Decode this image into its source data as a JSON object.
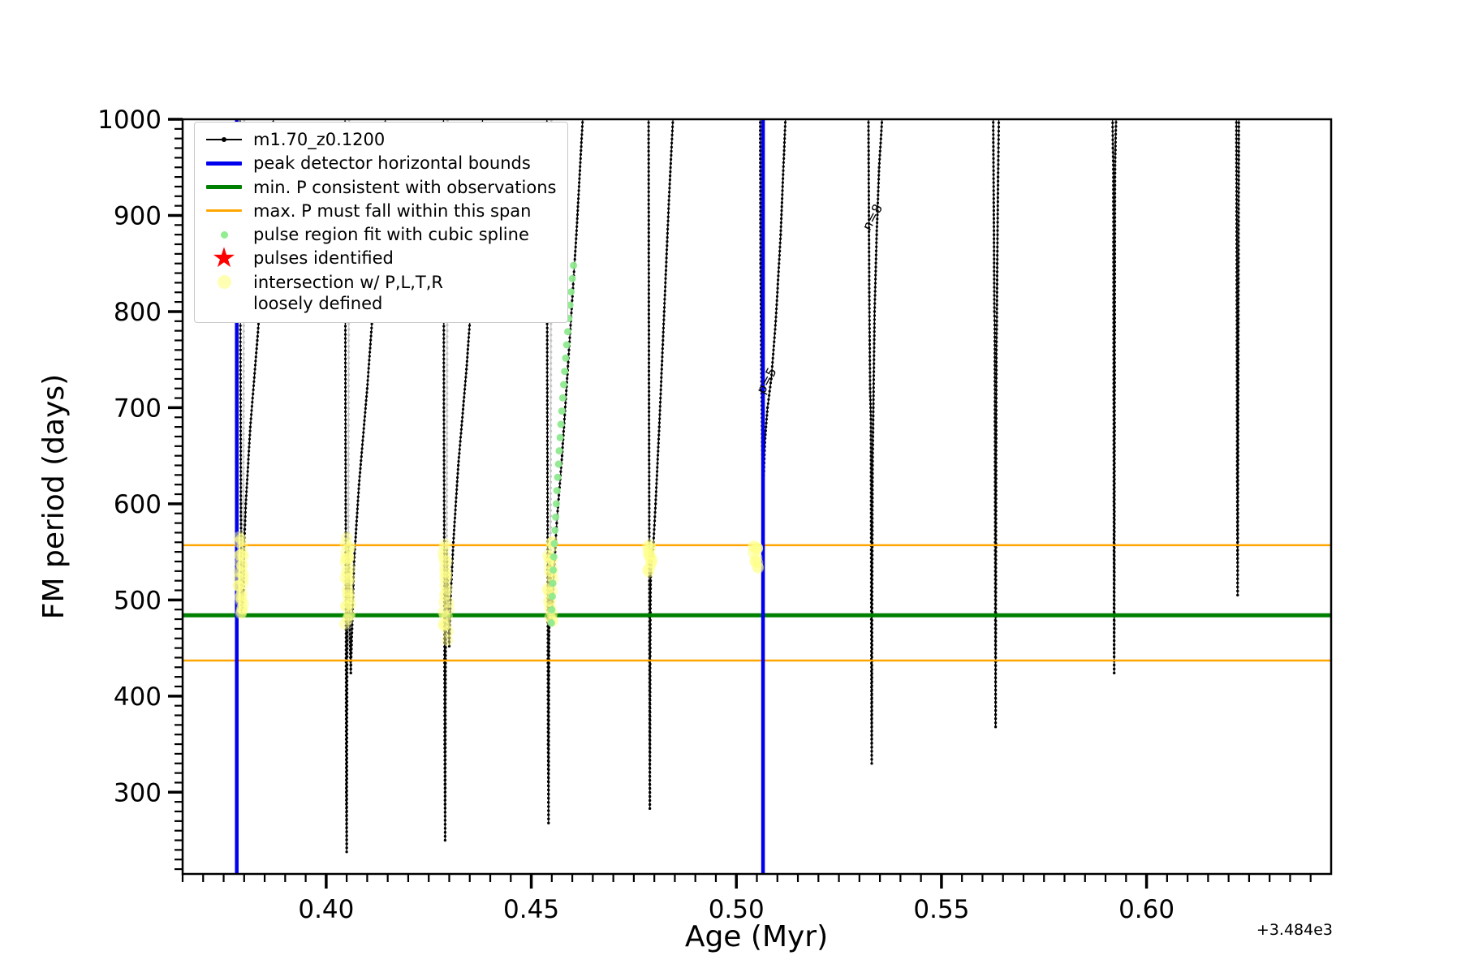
{
  "figure": {
    "xlabel": "Age (Myr)",
    "ylabel": "FM period (days)",
    "x_offset_text": "+3.484e3"
  },
  "legend": {
    "items": [
      {
        "label": "m1.70_z0.1200",
        "marker": "line-dot",
        "color": "#000000"
      },
      {
        "label": "peak detector horizontal bounds",
        "marker": "line-thick",
        "color": "#0000ee"
      },
      {
        "label": "min. P consistent with observations",
        "marker": "line-thick",
        "color": "#008000"
      },
      {
        "label": "max. P must fall within this span",
        "marker": "line-thin",
        "color": "#ffa500"
      },
      {
        "label": "pulse region fit with cubic spline",
        "marker": "dot-small",
        "color": "#90ee90"
      },
      {
        "label": "pulses identified",
        "marker": "star",
        "color": "#ff0000"
      },
      {
        "label": "intersection w/ P,L,T,R\nloosely defined",
        "marker": "dot-big",
        "color": "#ffff99"
      }
    ]
  },
  "chart_data": {
    "type": "line",
    "title": "",
    "xlabel": "Age (Myr)",
    "ylabel": "FM period (days)",
    "x_offset": "+3.484e3",
    "xlim": [
      0.365,
      0.645
    ],
    "ylim": [
      215,
      1000
    ],
    "xtick_values": [
      0.4,
      0.45,
      0.5,
      0.55,
      0.6
    ],
    "xtick_labels": [
      "0.40",
      "0.45",
      "0.50",
      "0.55",
      "0.60"
    ],
    "ytick_values": [
      300,
      400,
      500,
      600,
      700,
      800,
      900,
      1000
    ],
    "ytick_labels": [
      "300",
      "400",
      "500",
      "600",
      "700",
      "800",
      "900",
      "1000"
    ],
    "x_minor_step": 0.005,
    "y_minor_step": 10,
    "grid": false,
    "legend_position": "upper-left",
    "vlines": {
      "color": "#0000ee",
      "width": 4.5,
      "x": [
        0.3782,
        0.5065
      ]
    },
    "hlines": [
      {
        "y": 557,
        "color": "#ffa500",
        "width": 2.5
      },
      {
        "y": 484,
        "color": "#008000",
        "width": 5
      },
      {
        "y": 437,
        "color": "#ffa500",
        "width": 2.5
      }
    ],
    "annotations": [
      {
        "text": "p=5",
        "x": 0.5083,
        "y": 726,
        "rotation": -62
      },
      {
        "text": "n=8",
        "x": 0.5341,
        "y": 896,
        "rotation": -62
      }
    ],
    "series_name": "m1.70_z0.1200",
    "pulses": [
      {
        "points": [
          [
            0.379,
            1005
          ],
          [
            0.3791,
            760
          ],
          [
            0.3792,
            600
          ],
          [
            0.3793,
            520
          ],
          [
            0.3794,
            486
          ],
          [
            0.3796,
            492
          ],
          [
            0.3798,
            510
          ],
          [
            0.38,
            556
          ],
          [
            0.3804,
            600
          ],
          [
            0.3815,
            680
          ],
          [
            0.3832,
            770
          ],
          [
            0.3852,
            880
          ],
          [
            0.3872,
            1005
          ]
        ]
      },
      {
        "points": [
          [
            0.4046,
            1005
          ],
          [
            0.4047,
            700
          ],
          [
            0.4048,
            520
          ],
          [
            0.4049,
            300
          ],
          [
            0.405,
            238
          ],
          [
            0.4051,
            420
          ],
          [
            0.4052,
            500
          ],
          [
            0.4054,
            555
          ],
          [
            0.4056,
            520
          ],
          [
            0.4058,
            460
          ],
          [
            0.406,
            424
          ],
          [
            0.4063,
            470
          ],
          [
            0.4068,
            540
          ],
          [
            0.408,
            620
          ],
          [
            0.41,
            720
          ],
          [
            0.4122,
            850
          ],
          [
            0.4145,
            1005
          ]
        ]
      },
      {
        "points": [
          [
            0.4286,
            1005
          ],
          [
            0.4287,
            700
          ],
          [
            0.4288,
            540
          ],
          [
            0.4289,
            350
          ],
          [
            0.429,
            250
          ],
          [
            0.4291,
            430
          ],
          [
            0.4292,
            500
          ],
          [
            0.4294,
            552
          ],
          [
            0.4296,
            520
          ],
          [
            0.4298,
            470
          ],
          [
            0.43,
            452
          ],
          [
            0.4303,
            500
          ],
          [
            0.431,
            560
          ],
          [
            0.4322,
            640
          ],
          [
            0.4342,
            740
          ],
          [
            0.4362,
            860
          ],
          [
            0.4382,
            1005
          ]
        ]
      },
      {
        "points": [
          [
            0.4538,
            1005
          ],
          [
            0.4539,
            720
          ],
          [
            0.454,
            540
          ],
          [
            0.4541,
            350
          ],
          [
            0.4542,
            268
          ],
          [
            0.4543,
            430
          ],
          [
            0.4544,
            500
          ],
          [
            0.4546,
            548
          ],
          [
            0.4548,
            510
          ],
          [
            0.455,
            480
          ],
          [
            0.4554,
            520
          ],
          [
            0.4562,
            580
          ],
          [
            0.4575,
            650
          ],
          [
            0.4592,
            760
          ],
          [
            0.461,
            880
          ],
          [
            0.4626,
            1005
          ]
        ]
      },
      {
        "points": [
          [
            0.4786,
            1005
          ],
          [
            0.4787,
            700
          ],
          [
            0.4788,
            520
          ],
          [
            0.4789,
            283
          ],
          [
            0.479,
            450
          ],
          [
            0.4791,
            520
          ],
          [
            0.4793,
            553
          ],
          [
            0.4795,
            545
          ],
          [
            0.4798,
            560
          ],
          [
            0.4803,
            600
          ],
          [
            0.4812,
            680
          ],
          [
            0.4824,
            800
          ],
          [
            0.4836,
            920
          ],
          [
            0.4846,
            1005
          ]
        ]
      },
      {
        "points": [
          [
            0.5058,
            1005
          ],
          [
            0.5059,
            850
          ],
          [
            0.5061,
            740
          ],
          [
            0.5063,
            660
          ],
          [
            0.5065,
            616
          ],
          [
            0.5067,
            634
          ],
          [
            0.507,
            668
          ],
          [
            0.5076,
            700
          ],
          [
            0.5085,
            730
          ],
          [
            0.5096,
            790
          ],
          [
            0.5108,
            880
          ],
          [
            0.512,
            1005
          ]
        ]
      },
      {
        "points": [
          [
            0.5322,
            1005
          ],
          [
            0.5324,
            820
          ],
          [
            0.5326,
            720
          ],
          [
            0.5328,
            688
          ],
          [
            0.5329,
            480
          ],
          [
            0.533,
            330
          ],
          [
            0.5331,
            500
          ],
          [
            0.5332,
            640
          ],
          [
            0.5334,
            700
          ],
          [
            0.5337,
            800
          ],
          [
            0.5342,
            880
          ],
          [
            0.5348,
            950
          ],
          [
            0.5356,
            1005
          ]
        ]
      },
      {
        "points": [
          [
            0.5626,
            1005
          ],
          [
            0.5628,
            880
          ],
          [
            0.5629,
            800
          ],
          [
            0.563,
            786
          ],
          [
            0.5631,
            560
          ],
          [
            0.5632,
            368
          ],
          [
            0.5633,
            580
          ],
          [
            0.5634,
            760
          ],
          [
            0.5635,
            790
          ],
          [
            0.5636,
            850
          ],
          [
            0.5638,
            940
          ],
          [
            0.564,
            1005
          ]
        ]
      },
      {
        "points": [
          [
            0.5917,
            1005
          ],
          [
            0.5918,
            970
          ],
          [
            0.5919,
            948
          ],
          [
            0.592,
            700
          ],
          [
            0.5921,
            424
          ],
          [
            0.5922,
            680
          ],
          [
            0.5923,
            944
          ],
          [
            0.5924,
            968
          ],
          [
            0.5926,
            1005
          ]
        ]
      },
      {
        "points": [
          [
            0.6219,
            1005
          ],
          [
            0.622,
            820
          ],
          [
            0.6221,
            640
          ],
          [
            0.6222,
            505
          ],
          [
            0.6223,
            650
          ],
          [
            0.6224,
            830
          ],
          [
            0.6225,
            1005
          ]
        ]
      }
    ],
    "gray_strands": [
      {
        "points": [
          [
            0.38,
            1005
          ],
          [
            0.3798,
            560
          ]
        ]
      },
      {
        "points": [
          [
            0.4056,
            1005
          ],
          [
            0.4054,
            558
          ]
        ]
      },
      {
        "points": [
          [
            0.4296,
            1005
          ],
          [
            0.4294,
            555
          ]
        ]
      },
      {
        "points": [
          [
            0.4549,
            1005
          ],
          [
            0.4547,
            552
          ]
        ]
      }
    ],
    "intersection_clusters": [
      {
        "x": 0.3793,
        "y1": 485,
        "y2": 562,
        "n": 30
      },
      {
        "x": 0.4052,
        "y1": 478,
        "y2": 562,
        "n": 30
      },
      {
        "x": 0.4292,
        "y1": 462,
        "y2": 558,
        "n": 26
      },
      {
        "x": 0.4546,
        "y1": 476,
        "y2": 560,
        "n": 26
      },
      {
        "x": 0.479,
        "y1": 532,
        "y2": 558,
        "n": 14
      },
      {
        "x": 0.5047,
        "y1": 536,
        "y2": 558,
        "n": 12
      }
    ],
    "spline_fit": {
      "x1": 0.4549,
      "y1": 476,
      "x2": 0.4603,
      "y2": 848,
      "n": 28
    },
    "colors": {
      "track": "#000000",
      "gray_track": "#c4c4c4",
      "vline": "#0000ee",
      "min_p": "#008000",
      "max_p_span": "#ffa500",
      "spline": "#8fea8f",
      "intersection": "#ffff8c",
      "pulse_star": "#ff0000"
    }
  }
}
